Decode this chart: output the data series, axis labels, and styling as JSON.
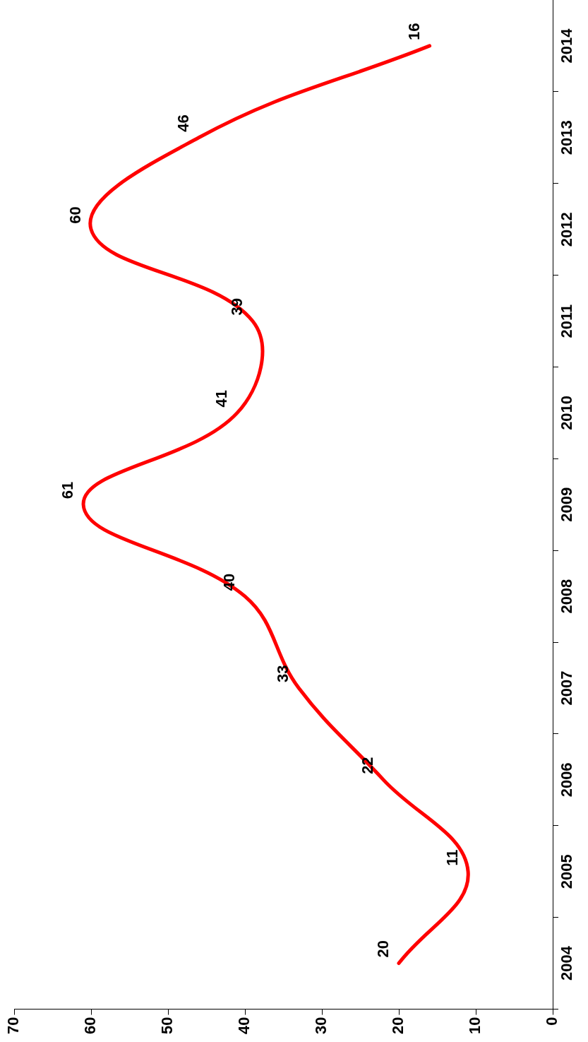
{
  "chart_data": {
    "type": "line",
    "orientation": "horizontal",
    "categories": [
      "2014",
      "2013",
      "2012",
      "2011",
      "2010",
      "2009",
      "2008",
      "2007",
      "2006",
      "2005",
      "2004"
    ],
    "values": [
      16,
      46,
      60,
      39,
      41,
      61,
      40,
      33,
      22,
      11,
      20
    ],
    "color": "#ff0000",
    "xlim": [
      70,
      0
    ],
    "xticks": [
      70,
      60,
      50,
      40,
      30,
      20,
      10,
      0
    ],
    "data_labels": true,
    "marker": "none"
  }
}
